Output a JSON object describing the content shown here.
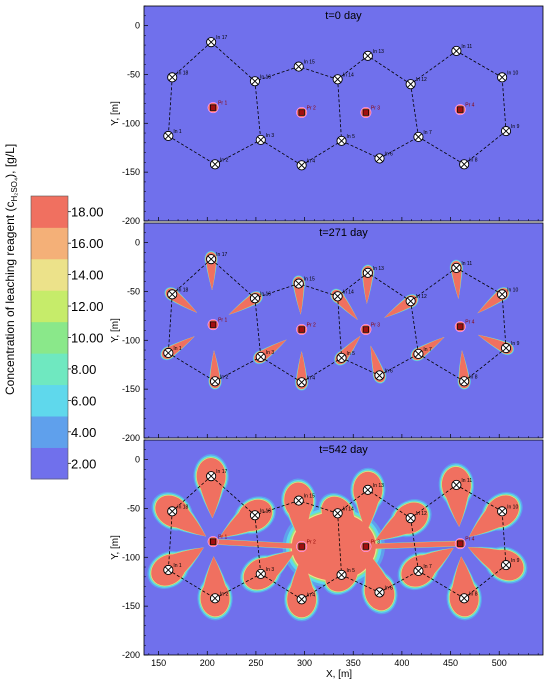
{
  "chart_data": {
    "type": "heatmap",
    "colorbar": {
      "title": "Concentration of leaching reagent (c",
      "title_sub": "H₂SO₄",
      "title_end": "), [g/L]",
      "ticks": [
        "2.00",
        "4.00",
        "6.00",
        "8.00",
        "10.00",
        "12.00",
        "14.00",
        "16.00",
        "18.00"
      ],
      "colors": [
        "#7070ec",
        "#5fa0ec",
        "#5fd8ec",
        "#6fe8c0",
        "#8ae88a",
        "#c6ec6a",
        "#ece28a",
        "#f4b078",
        "#f07060"
      ]
    },
    "background_color": "#7070ec",
    "plume_color": "#f07060",
    "x_axis": {
      "label": "X, [m]",
      "range": [
        135,
        545
      ],
      "ticks": [
        "150",
        "200",
        "250",
        "300",
        "350",
        "400",
        "450",
        "500"
      ]
    },
    "y_axis": {
      "label": "Y, [m]",
      "range": [
        -200,
        20
      ],
      "ticks": [
        "0",
        "-50",
        "-100",
        "-150",
        "-200"
      ]
    },
    "panels": [
      {
        "title": "t=0 day",
        "spread": 0
      },
      {
        "title": "t=271 day",
        "spread": 0.5
      },
      {
        "title": "t=542 day",
        "spread": 1
      }
    ],
    "injection_wells": [
      {
        "name": "In 1",
        "x": 160,
        "y": -113
      },
      {
        "name": "In 2",
        "x": 208,
        "y": -142
      },
      {
        "name": "In 3",
        "x": 255,
        "y": -117
      },
      {
        "name": "In 4",
        "x": 297,
        "y": -143
      },
      {
        "name": "In 5",
        "x": 338,
        "y": -118
      },
      {
        "name": "In 6",
        "x": 377,
        "y": -136
      },
      {
        "name": "In 7",
        "x": 417,
        "y": -114
      },
      {
        "name": "In 8",
        "x": 464,
        "y": -142
      },
      {
        "name": "In 9",
        "x": 507,
        "y": -108
      },
      {
        "name": "In 10",
        "x": 503,
        "y": -53
      },
      {
        "name": "In 11",
        "x": 456,
        "y": -26
      },
      {
        "name": "In 12",
        "x": 409,
        "y": -60
      },
      {
        "name": "In 13",
        "x": 365,
        "y": -31
      },
      {
        "name": "In 14",
        "x": 334,
        "y": -55
      },
      {
        "name": "In 15",
        "x": 294,
        "y": -42
      },
      {
        "name": "In 16",
        "x": 249,
        "y": -57
      },
      {
        "name": "In 17",
        "x": 204,
        "y": -17
      },
      {
        "name": "In 18",
        "x": 164,
        "y": -53
      }
    ],
    "production_wells": [
      {
        "name": "Pr 1",
        "x": 206,
        "y": -84
      },
      {
        "name": "Pr 2",
        "x": 297,
        "y": -89
      },
      {
        "name": "Pr 3",
        "x": 363,
        "y": -89
      },
      {
        "name": "Pr 4",
        "x": 460,
        "y": -86
      }
    ],
    "network": [
      [
        "In 1",
        "In 2"
      ],
      [
        "In 2",
        "In 3"
      ],
      [
        "In 3",
        "In 4"
      ],
      [
        "In 4",
        "In 5"
      ],
      [
        "In 5",
        "In 6"
      ],
      [
        "In 6",
        "In 7"
      ],
      [
        "In 7",
        "In 8"
      ],
      [
        "In 8",
        "In 9"
      ],
      [
        "In 9",
        "In 10"
      ],
      [
        "In 10",
        "In 11"
      ],
      [
        "In 11",
        "In 12"
      ],
      [
        "In 12",
        "In 13"
      ],
      [
        "In 13",
        "In 14"
      ],
      [
        "In 14",
        "In 15"
      ],
      [
        "In 15",
        "In 16"
      ],
      [
        "In 16",
        "In 17"
      ],
      [
        "In 17",
        "In 18"
      ],
      [
        "In 18",
        "In 1"
      ],
      [
        "In 16",
        "In 3"
      ],
      [
        "In 14",
        "In 5"
      ],
      [
        "In 12",
        "In 7"
      ]
    ]
  }
}
